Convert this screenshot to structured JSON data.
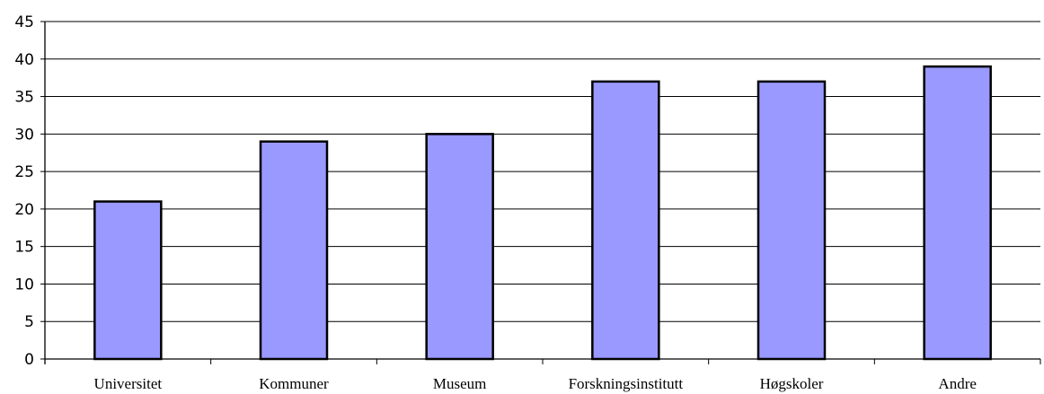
{
  "chart_data": {
    "type": "bar",
    "title": "",
    "xlabel": "",
    "ylabel": "",
    "categories": [
      "Universitet",
      "Kommuner",
      "Museum",
      "Forskningsinstitutt",
      "Høgskoler",
      "Andre"
    ],
    "values": [
      21,
      29,
      30,
      37,
      37,
      39
    ],
    "ylim": [
      0,
      45
    ],
    "yticks": [
      "0",
      "5",
      "10",
      "15",
      "20",
      "25",
      "30",
      "35",
      "40",
      "45"
    ],
    "grid": true,
    "legend": "none",
    "bar_color": "#9999ff",
    "grid_color": "#000000"
  }
}
